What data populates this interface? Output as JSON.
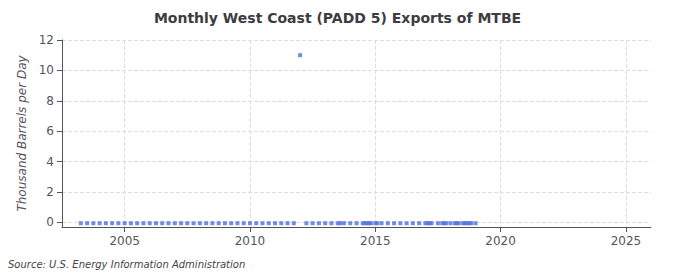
{
  "chart_data": {
    "type": "scatter",
    "title": "Monthly West Coast (PADD 5) Exports of MTBE",
    "ylabel": "Thousand Barrels per Day",
    "source": "Source: U.S. Energy Information Administration",
    "marker": "square",
    "grid": true,
    "xlim": [
      2002.5,
      2026
    ],
    "xticks": [
      2005,
      2010,
      2015,
      2020,
      2025
    ],
    "ylim": [
      -0.3,
      12
    ],
    "yticks": [
      0,
      2,
      4,
      6,
      8,
      10,
      12
    ],
    "x": [
      2003.25,
      2003.5,
      2003.75,
      2004.0,
      2004.25,
      2004.5,
      2004.75,
      2005.0,
      2005.25,
      2005.5,
      2005.75,
      2006.0,
      2006.25,
      2006.5,
      2006.75,
      2007.0,
      2007.25,
      2007.5,
      2007.75,
      2008.0,
      2008.25,
      2008.5,
      2008.75,
      2009.0,
      2009.25,
      2009.5,
      2009.75,
      2010.0,
      2010.25,
      2010.5,
      2010.75,
      2011.0,
      2011.25,
      2011.5,
      2011.75,
      2012.0,
      2012.25,
      2012.5,
      2012.75,
      2013.0,
      2013.25,
      2013.5,
      2013.6,
      2013.75,
      2014.0,
      2014.25,
      2014.5,
      2014.58,
      2014.67,
      2014.75,
      2014.83,
      2015.0,
      2015.08,
      2015.25,
      2015.5,
      2015.75,
      2016.0,
      2016.25,
      2016.5,
      2016.75,
      2017.0,
      2017.08,
      2017.17,
      2017.25,
      2017.5,
      2017.67,
      2017.75,
      2017.83,
      2018.0,
      2018.17,
      2018.25,
      2018.33,
      2018.5,
      2018.58,
      2018.67,
      2018.75,
      2018.83,
      2019.0
    ],
    "values": [
      -0.05,
      -0.05,
      -0.05,
      -0.05,
      -0.05,
      -0.05,
      -0.05,
      -0.05,
      -0.05,
      -0.05,
      -0.05,
      -0.05,
      -0.05,
      -0.05,
      -0.05,
      -0.05,
      -0.05,
      -0.05,
      -0.05,
      -0.05,
      -0.05,
      -0.05,
      -0.05,
      -0.05,
      -0.05,
      -0.05,
      -0.05,
      -0.05,
      -0.05,
      -0.05,
      -0.05,
      -0.05,
      -0.05,
      -0.05,
      -0.05,
      11.0,
      -0.05,
      -0.05,
      -0.05,
      -0.05,
      -0.05,
      -0.05,
      -0.05,
      -0.05,
      -0.05,
      -0.05,
      -0.05,
      -0.05,
      -0.05,
      -0.05,
      -0.05,
      -0.05,
      -0.05,
      -0.05,
      -0.05,
      -0.05,
      -0.05,
      -0.05,
      -0.05,
      -0.05,
      -0.05,
      -0.05,
      -0.05,
      -0.05,
      -0.05,
      -0.05,
      -0.05,
      -0.05,
      -0.05,
      -0.05,
      -0.05,
      -0.05,
      -0.05,
      -0.05,
      -0.05,
      -0.05,
      -0.05,
      -0.05
    ]
  }
}
